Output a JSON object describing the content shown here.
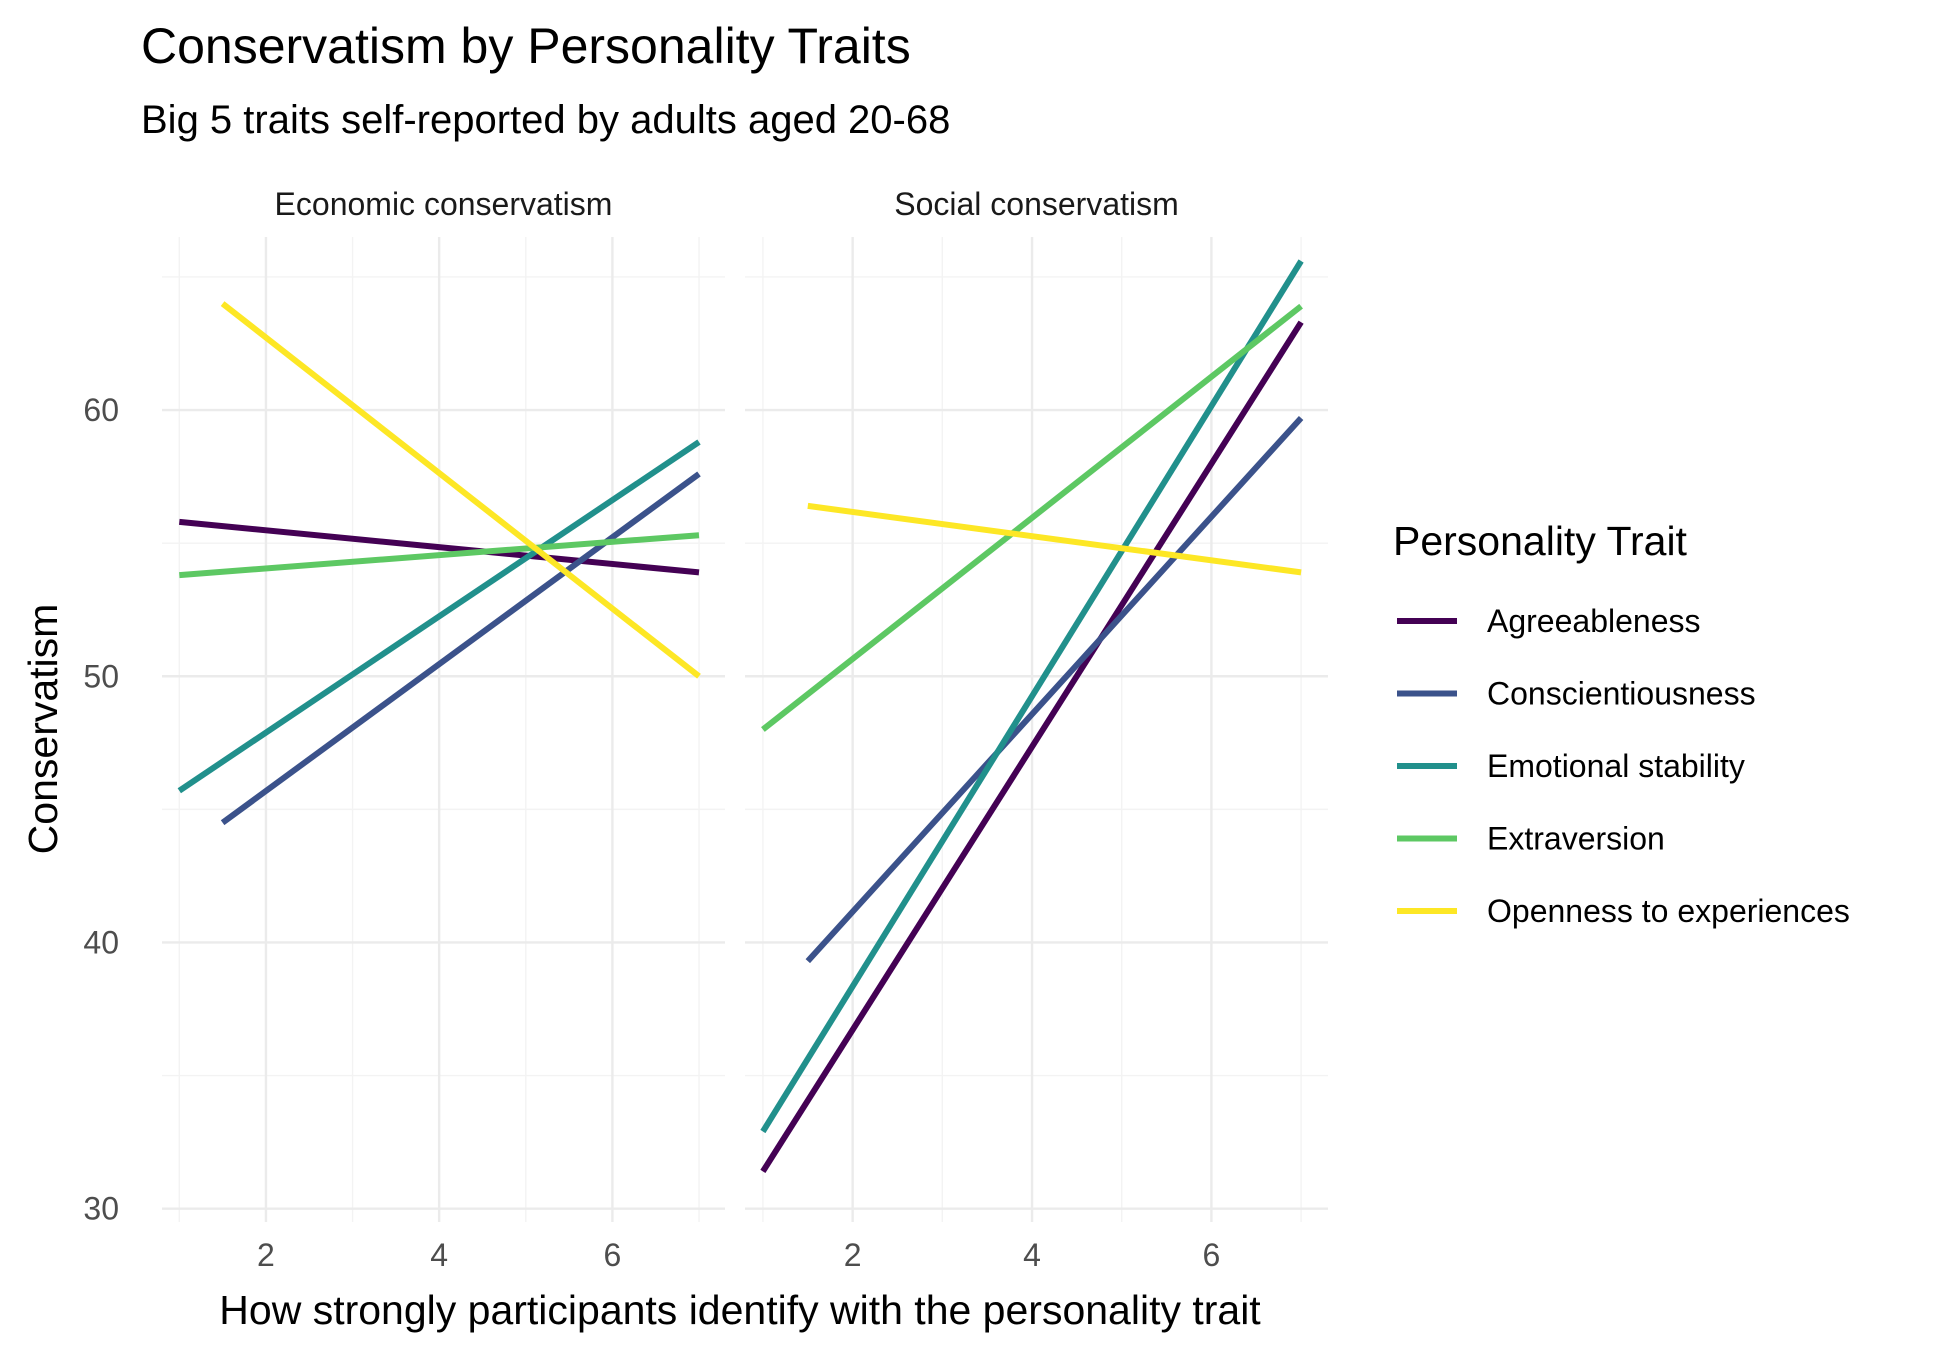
{
  "chart_data": {
    "type": "line",
    "title": "Conservatism by Personality Traits",
    "subtitle": "Big 5 traits self-reported by adults aged 20-68",
    "xlabel": "How strongly participants identify with the personality trait",
    "ylabel": "Conservatism",
    "xlim": [
      0.8,
      7.3
    ],
    "ylim": [
      29.5,
      66.5
    ],
    "x_ticks": [
      "2",
      "4",
      "6"
    ],
    "y_ticks": [
      "30",
      "40",
      "50",
      "60"
    ],
    "grid": true,
    "legend": {
      "title": "Personality Trait",
      "position": "right",
      "items": [
        {
          "label": "Agreeableness",
          "color": "#440154"
        },
        {
          "label": "Conscientiousness",
          "color": "#3B528B"
        },
        {
          "label": "Emotional stability",
          "color": "#21908C"
        },
        {
          "label": "Extraversion",
          "color": "#5DC863"
        },
        {
          "label": "Openness to experiences",
          "color": "#FDE725"
        }
      ]
    },
    "panels": [
      {
        "label": "Economic conservatism",
        "series": [
          {
            "name": "Agreeableness",
            "x": [
              1,
              7
            ],
            "y": [
              55.8,
              53.9
            ]
          },
          {
            "name": "Conscientiousness",
            "x": [
              1.5,
              7
            ],
            "y": [
              44.5,
              57.6
            ]
          },
          {
            "name": "Emotional stability",
            "x": [
              1,
              7
            ],
            "y": [
              45.7,
              58.8
            ]
          },
          {
            "name": "Extraversion",
            "x": [
              1,
              7
            ],
            "y": [
              53.8,
              55.3
            ]
          },
          {
            "name": "Openness to experiences",
            "x": [
              1.5,
              7
            ],
            "y": [
              64.0,
              50.0
            ]
          }
        ]
      },
      {
        "label": "Social conservatism",
        "series": [
          {
            "name": "Agreeableness",
            "x": [
              1,
              7
            ],
            "y": [
              31.4,
              63.3
            ]
          },
          {
            "name": "Conscientiousness",
            "x": [
              1.5,
              7
            ],
            "y": [
              39.3,
              59.7
            ]
          },
          {
            "name": "Emotional stability",
            "x": [
              1,
              7
            ],
            "y": [
              32.9,
              65.6
            ]
          },
          {
            "name": "Extraversion",
            "x": [
              1,
              7
            ],
            "y": [
              48.0,
              63.9
            ]
          },
          {
            "name": "Openness to experiences",
            "x": [
              1.5,
              7
            ],
            "y": [
              56.4,
              53.9
            ]
          }
        ]
      }
    ]
  }
}
